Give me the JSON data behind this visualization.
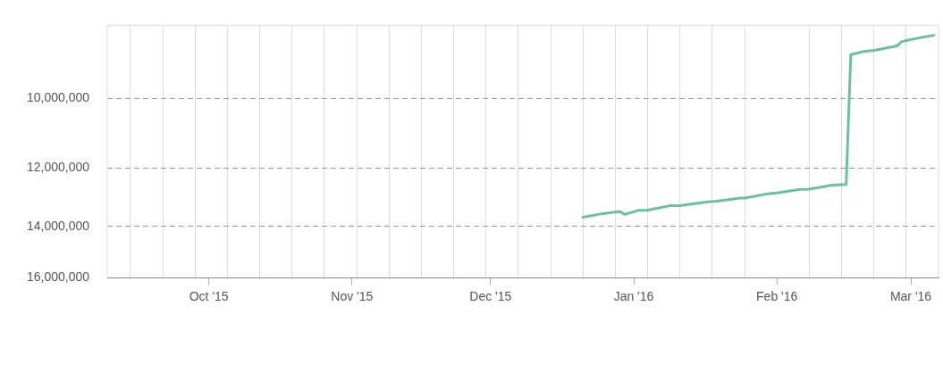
{
  "chart_data": {
    "type": "line",
    "x": [
      "2015-12-21",
      "2015-12-25",
      "2015-12-29",
      "2015-12-30",
      "2016-01-02",
      "2016-01-04",
      "2016-01-09",
      "2016-01-11",
      "2016-01-17",
      "2016-01-19",
      "2016-01-24",
      "2016-01-25",
      "2016-01-30",
      "2016-02-01",
      "2016-02-06",
      "2016-02-08",
      "2016-02-13",
      "2016-02-16",
      "2016-02-17",
      "2016-02-20",
      "2016-02-22",
      "2016-02-27",
      "2016-02-28",
      "2016-03-04",
      "2016-03-06"
    ],
    "series": [
      {
        "color": "#6dbf9b",
        "values": [
          13660000,
          13540000,
          13460000,
          13560000,
          13420000,
          13410000,
          13250000,
          13250000,
          13120000,
          13100000,
          12990000,
          12990000,
          12850000,
          12820000,
          12700000,
          12690000,
          12560000,
          12540000,
          8920000,
          8840000,
          8820000,
          8720000,
          8620000,
          8510000,
          8480000
        ]
      }
    ],
    "log": "y",
    "ylim": [
      16000000,
      8260000
    ],
    "yticks": [
      {
        "value": 10000000,
        "label": "10,000,000"
      },
      {
        "value": 12000000,
        "label": "12,000,000"
      },
      {
        "value": 14000000,
        "label": "14,000,000"
      },
      {
        "value": 16000000,
        "label": "16,000,000"
      }
    ],
    "xlim": [
      "2015-09-09",
      "2016-03-07"
    ],
    "xticks": [
      {
        "value": "2015-09-14",
        "label": null
      },
      {
        "value": "2015-09-21",
        "label": null
      },
      {
        "value": "2015-09-28",
        "label": null
      },
      {
        "value": "2015-10-01",
        "label": "Oct '15"
      },
      {
        "value": "2015-10-05",
        "label": null
      },
      {
        "value": "2015-10-12",
        "label": null
      },
      {
        "value": "2015-10-19",
        "label": null
      },
      {
        "value": "2015-10-26",
        "label": null
      },
      {
        "value": "2015-11-01",
        "label": "Nov '15"
      },
      {
        "value": "2015-11-02",
        "label": null
      },
      {
        "value": "2015-11-09",
        "label": null
      },
      {
        "value": "2015-11-16",
        "label": null
      },
      {
        "value": "2015-11-23",
        "label": null
      },
      {
        "value": "2015-11-30",
        "label": null
      },
      {
        "value": "2015-12-01",
        "label": "Dec '15"
      },
      {
        "value": "2015-12-07",
        "label": null
      },
      {
        "value": "2015-12-14",
        "label": null
      },
      {
        "value": "2015-12-21",
        "label": null
      },
      {
        "value": "2015-12-28",
        "label": null
      },
      {
        "value": "2016-01-01",
        "label": "Jan '16"
      },
      {
        "value": "2016-01-04",
        "label": null
      },
      {
        "value": "2016-01-11",
        "label": null
      },
      {
        "value": "2016-01-18",
        "label": null
      },
      {
        "value": "2016-01-25",
        "label": null
      },
      {
        "value": "2016-02-01",
        "label": "Feb '16"
      },
      {
        "value": "2016-02-08",
        "label": null
      },
      {
        "value": "2016-02-15",
        "label": null
      },
      {
        "value": "2016-02-22",
        "label": null
      },
      {
        "value": "2016-02-29",
        "label": null
      },
      {
        "value": "2016-03-01",
        "label": "Mar '16"
      }
    ],
    "grid": true,
    "legend": false,
    "marker": "none",
    "line_style": "solid"
  }
}
